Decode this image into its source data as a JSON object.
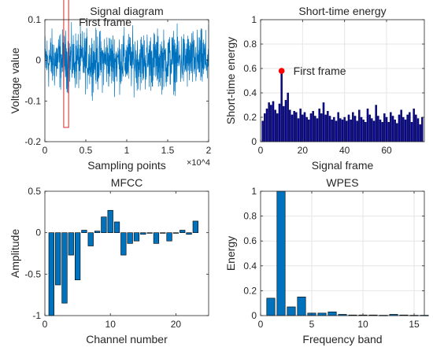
{
  "chart_data": [
    {
      "type": "line",
      "title": "Signal diagram",
      "xlabel": "Sampling points",
      "ylabel": "Voltage value",
      "x_exponent_label": "×10^4",
      "xlim": [
        0,
        2
      ],
      "ylim": [
        -0.2,
        0.1
      ],
      "xticks": [
        0,
        0.5,
        1,
        1.5,
        2
      ],
      "xtick_labels": [
        "0",
        "0.5",
        "1",
        "1.5",
        "2"
      ],
      "yticks": [
        -0.2,
        -0.1,
        0,
        0.1
      ],
      "ytick_labels": [
        "-0.2",
        "-0.1",
        "0",
        "0.1"
      ],
      "series_color": "#0072BD",
      "amplitude_envelope": 0.1,
      "annotation": {
        "text": "First frame",
        "box_x_range": [
          0.23,
          0.29
        ],
        "box_y_range": [
          -0.165,
          0.155
        ],
        "box_color": "#d62728"
      }
    },
    {
      "type": "bar",
      "title": "Short-time energy",
      "xlabel": "Signal frame",
      "ylabel": "Short-time energy",
      "xlim": [
        0,
        78
      ],
      "ylim": [
        0,
        1
      ],
      "xticks": [
        0,
        20,
        40,
        60
      ],
      "xtick_labels": [
        "0",
        "20",
        "40",
        "60"
      ],
      "yticks": [
        0,
        0.2,
        0.4,
        0.6,
        0.8,
        1
      ],
      "ytick_labels": [
        "0",
        "0.2",
        "0.4",
        "0.6",
        "0.8",
        "1"
      ],
      "grid": true,
      "bar_color": "#0a0a8a",
      "values": [
        0.17,
        0.23,
        0.27,
        0.32,
        0.3,
        0.33,
        0.26,
        0.23,
        0.31,
        0.58,
        0.29,
        0.34,
        0.4,
        0.26,
        0.22,
        0.25,
        0.24,
        0.19,
        0.27,
        0.22,
        0.24,
        0.2,
        0.18,
        0.23,
        0.25,
        0.21,
        0.19,
        0.27,
        0.23,
        0.32,
        0.22,
        0.25,
        0.21,
        0.18,
        0.2,
        0.17,
        0.24,
        0.19,
        0.18,
        0.2,
        0.17,
        0.22,
        0.18,
        0.24,
        0.21,
        0.17,
        0.26,
        0.2,
        0.18,
        0.16,
        0.27,
        0.22,
        0.19,
        0.17,
        0.3,
        0.21,
        0.18,
        0.16,
        0.23,
        0.2,
        0.16,
        0.24,
        0.21,
        0.18,
        0.15,
        0.22,
        0.26,
        0.2,
        0.18,
        0.22,
        0.24,
        0.16,
        0.27,
        0.22,
        0.19,
        0.14,
        0.2
      ],
      "annotation": {
        "text": "First frame",
        "frame": 10,
        "value": 0.58,
        "marker_color": "#ff0000"
      }
    },
    {
      "type": "bar",
      "title": "MFCC",
      "xlabel": "Channel number",
      "ylabel": "Amplitude",
      "xlim": [
        0,
        25
      ],
      "ylim": [
        -1,
        0.5
      ],
      "xticks": [
        0,
        10,
        20
      ],
      "xtick_labels": [
        "0",
        "10",
        "20"
      ],
      "yticks": [
        -1,
        -0.5,
        0,
        0.5
      ],
      "ytick_labels": [
        "-1",
        "-0.5",
        "0",
        "0.5"
      ],
      "bar_color": "#0072BD",
      "categories": [
        1,
        2,
        3,
        4,
        5,
        6,
        7,
        8,
        9,
        10,
        11,
        12,
        13,
        14,
        15,
        16,
        17,
        18,
        19,
        20,
        21,
        22,
        23
      ],
      "values": [
        -1.0,
        -0.63,
        -0.85,
        -0.27,
        -0.57,
        0.03,
        -0.16,
        0.02,
        0.19,
        0.27,
        0.13,
        -0.27,
        -0.13,
        -0.1,
        -0.02,
        0.0,
        -0.13,
        0.0,
        -0.1,
        0.0,
        0.03,
        -0.02,
        0.14
      ]
    },
    {
      "type": "bar",
      "title": "WPES",
      "xlabel": "Frequency band",
      "ylabel": "Energy",
      "xlim": [
        0,
        16
      ],
      "ylim": [
        0,
        1
      ],
      "xticks": [
        0,
        5,
        10,
        15
      ],
      "xtick_labels": [
        "0",
        "5",
        "10",
        "15"
      ],
      "yticks": [
        0,
        0.2,
        0.4,
        0.6,
        0.8,
        1
      ],
      "ytick_labels": [
        "0",
        "0.2",
        "0.4",
        "0.6",
        "0.8",
        "1"
      ],
      "grid": true,
      "bar_color": "#0072BD",
      "categories": [
        1,
        2,
        3,
        4,
        5,
        6,
        7,
        8,
        9,
        10,
        11,
        12,
        13,
        14,
        15,
        16
      ],
      "values": [
        0.14,
        1.0,
        0.07,
        0.15,
        0.02,
        0.02,
        0.03,
        0.01,
        0.005,
        0.005,
        0.005,
        0.003,
        0.01,
        0.005,
        0.003,
        0.003
      ]
    }
  ]
}
